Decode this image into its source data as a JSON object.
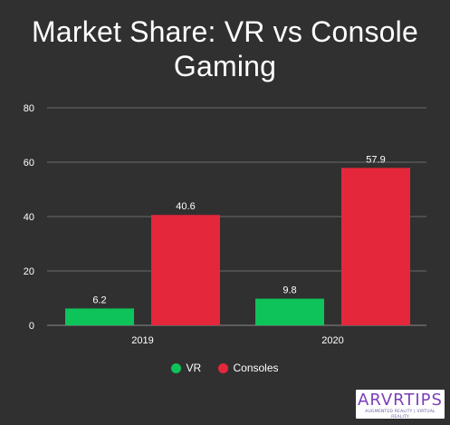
{
  "title_lines": [
    "Market Share: VR vs Console",
    "Gaming"
  ],
  "colors": {
    "background": "#303030",
    "grid": "#6a6a6a",
    "axis": "#8a8a8a",
    "vr": "#0ec35a",
    "consoles": "#e5273c"
  },
  "chart_data": {
    "type": "bar",
    "title": "Market Share: VR vs Console Gaming",
    "categories": [
      "2019",
      "2020"
    ],
    "series": [
      {
        "name": "VR",
        "values": [
          6.2,
          9.8
        ],
        "labels": [
          "6.2",
          "9.8"
        ]
      },
      {
        "name": "Consoles",
        "values": [
          40.6,
          57.9
        ],
        "labels": [
          "40.6",
          "57.9"
        ]
      }
    ],
    "xlabel": "",
    "ylabel": "",
    "ylim": [
      0,
      80
    ],
    "yticks": [
      0,
      20,
      40,
      60,
      80
    ],
    "ytick_labels": [
      "0",
      "20",
      "40",
      "60",
      "80"
    ],
    "grid": true,
    "legend_position": "bottom-center"
  },
  "legend": [
    {
      "label": "VR",
      "icon": "circle"
    },
    {
      "label": "Consoles",
      "icon": "circle"
    }
  ],
  "logo": {
    "text": "ARVRTIPS",
    "tagline": "AUGMENTED REALITY | VIRTUAL REALITY"
  }
}
